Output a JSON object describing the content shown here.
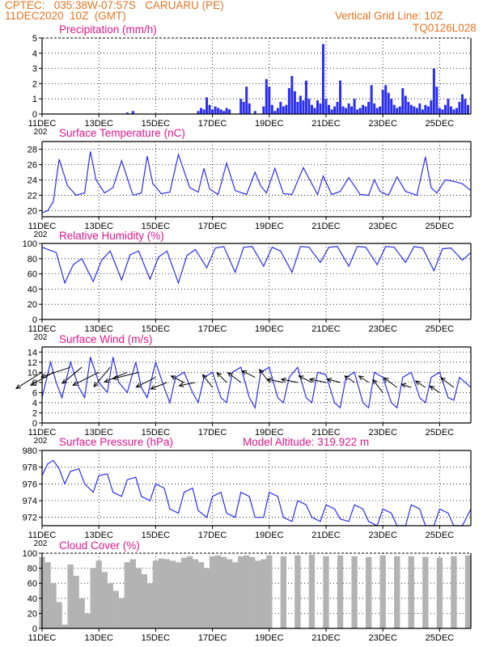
{
  "header": {
    "line1": "CPTEC:   035:38W-07:57S   CARUARU (PE)",
    "line2": "11DEC2020  10Z  (GMT)",
    "grid_note": "Vertical Grid Line: 10Z",
    "model_id": "TQ0126L028"
  },
  "colors": {
    "header": "#e8731f",
    "title": "#e0178a",
    "line": "#2a2ef0",
    "bars": "#2a2ef0",
    "cloud": "#b3b3b3",
    "arrows": "#000000"
  },
  "x_axis": {
    "ticks": [
      "11DEC",
      "13DEC",
      "15DEC",
      "17DEC",
      "19DEC",
      "21DEC",
      "23DEC",
      "25DEC"
    ],
    "tick_days": [
      0,
      2,
      4,
      6,
      8,
      10,
      12,
      14
    ],
    "cut_label": "202",
    "range_days": [
      0,
      15.1
    ]
  },
  "chart_data": [
    {
      "type": "bar",
      "title": "Precipitation (mm/h)",
      "ylim": [
        0,
        5
      ],
      "yticks": [
        0,
        1,
        2,
        3,
        4,
        5
      ],
      "x_unit": "days since 11DEC2020 10Z",
      "x": [
        3.0,
        3.2,
        5.5,
        5.6,
        5.7,
        5.8,
        5.9,
        6.0,
        6.1,
        6.2,
        6.3,
        6.4,
        6.5,
        6.6,
        7.0,
        7.1,
        7.2,
        7.3,
        7.5,
        7.8,
        7.9,
        8.0,
        8.1,
        8.2,
        8.3,
        8.4,
        8.5,
        8.6,
        8.7,
        8.8,
        8.9,
        9.0,
        9.1,
        9.2,
        9.3,
        9.4,
        9.5,
        9.6,
        9.7,
        9.8,
        9.9,
        10.0,
        10.1,
        10.2,
        10.3,
        10.4,
        10.5,
        10.6,
        10.7,
        10.8,
        10.9,
        11.0,
        11.1,
        11.2,
        11.3,
        11.4,
        11.5,
        11.6,
        11.7,
        11.8,
        11.9,
        12.0,
        12.1,
        12.2,
        12.3,
        12.4,
        12.5,
        12.6,
        12.7,
        12.8,
        12.9,
        13.0,
        13.1,
        13.2,
        13.3,
        13.4,
        13.5,
        13.6,
        13.7,
        13.8,
        13.9,
        14.0,
        14.1,
        14.2,
        14.3,
        14.4,
        14.5,
        14.6,
        14.7,
        14.8,
        14.9,
        15.0
      ],
      "values": [
        0.1,
        0.2,
        0.2,
        0.4,
        0.3,
        1.1,
        0.6,
        0.3,
        0.5,
        0.4,
        0.3,
        0.2,
        0.4,
        0.3,
        1.0,
        0.8,
        1.8,
        0.7,
        0.2,
        0.5,
        2.3,
        1.8,
        0.6,
        0.2,
        0.4,
        0.8,
        0.5,
        0.6,
        1.7,
        2.5,
        1.5,
        0.8,
        1.2,
        0.9,
        2.2,
        1.0,
        0.6,
        0.4,
        0.9,
        0.7,
        4.6,
        1.0,
        0.6,
        0.3,
        0.5,
        0.8,
        2.2,
        0.5,
        0.4,
        0.7,
        0.5,
        1.0,
        0.3,
        0.4,
        0.6,
        0.5,
        0.8,
        1.9,
        0.7,
        0.4,
        0.5,
        1.6,
        1.9,
        1.4,
        1.0,
        0.6,
        0.4,
        0.5,
        1.7,
        1.2,
        0.8,
        0.6,
        0.5,
        0.4,
        0.7,
        0.3,
        0.6,
        0.5,
        0.9,
        3.0,
        1.8,
        0.4,
        0.3,
        0.6,
        1.0,
        0.5,
        0.3,
        0.4,
        0.8,
        1.3,
        1.0,
        0.6
      ]
    },
    {
      "type": "line",
      "title": "Surface Temperature (nC)",
      "ylim": [
        19.2,
        29
      ],
      "yticks": [
        20,
        22,
        24,
        26,
        28
      ],
      "x_unit": "days since 11DEC2020 10Z",
      "x": [
        0.0,
        0.2,
        0.4,
        0.5,
        0.6,
        0.9,
        1.2,
        1.5,
        1.7,
        1.9,
        2.2,
        2.5,
        2.8,
        3.2,
        3.5,
        3.7,
        3.9,
        4.2,
        4.5,
        4.8,
        5.2,
        5.5,
        5.7,
        5.9,
        6.2,
        6.5,
        6.8,
        7.2,
        7.5,
        7.7,
        7.9,
        8.2,
        8.5,
        8.8,
        9.2,
        9.5,
        9.7,
        9.9,
        10.2,
        10.5,
        10.8,
        11.2,
        11.5,
        11.7,
        11.9,
        12.2,
        12.5,
        12.8,
        13.2,
        13.5,
        13.7,
        13.9,
        14.2,
        14.5,
        14.8,
        15.1
      ],
      "values": [
        19.7,
        20.0,
        21.2,
        24.0,
        26.7,
        23.2,
        22.0,
        22.3,
        27.7,
        24.0,
        22.3,
        23.0,
        26.5,
        22.0,
        22.3,
        27.1,
        23.5,
        22.2,
        22.4,
        27.3,
        23.0,
        22.4,
        25.5,
        22.8,
        22.1,
        26.2,
        22.6,
        22.1,
        25.0,
        23.2,
        22.3,
        25.5,
        22.2,
        22.1,
        25.6,
        23.5,
        22.1,
        24.5,
        22.1,
        22.5,
        24.3,
        22.1,
        22.0,
        24.0,
        22.5,
        22.0,
        24.4,
        22.5,
        22.0,
        27.0,
        23.0,
        22.3,
        24.0,
        23.8,
        23.5,
        22.6
      ]
    },
    {
      "type": "line",
      "title": "Relative Humidity (%)",
      "ylim": [
        0,
        100
      ],
      "yticks": [
        0,
        20,
        40,
        60,
        80,
        100
      ],
      "x_unit": "days since 11DEC2020 10Z",
      "x": [
        0.0,
        0.5,
        0.8,
        1.1,
        1.4,
        1.8,
        2.1,
        2.4,
        2.8,
        3.1,
        3.4,
        3.8,
        4.1,
        4.4,
        4.8,
        5.1,
        5.4,
        5.8,
        6.1,
        6.4,
        6.8,
        7.1,
        7.4,
        7.8,
        8.1,
        8.4,
        8.8,
        9.1,
        9.4,
        9.8,
        10.1,
        10.4,
        10.8,
        11.1,
        11.4,
        11.8,
        12.1,
        12.4,
        12.8,
        13.1,
        13.4,
        13.8,
        14.1,
        14.4,
        14.8,
        15.1
      ],
      "values": [
        95,
        88,
        48,
        72,
        80,
        50,
        78,
        90,
        52,
        85,
        90,
        53,
        82,
        90,
        48,
        84,
        92,
        68,
        94,
        96,
        62,
        95,
        96,
        70,
        95,
        90,
        62,
        96,
        95,
        75,
        95,
        96,
        70,
        96,
        95,
        72,
        96,
        95,
        75,
        96,
        94,
        64,
        93,
        94,
        78,
        88
      ]
    },
    {
      "type": "line",
      "title": "Surface Wind (m/s)",
      "ylim": [
        0,
        15
      ],
      "yticks": [
        0,
        2,
        4,
        6,
        8,
        10,
        12,
        14
      ],
      "x_unit": "days since 11DEC2020 10Z",
      "x": [
        0.0,
        0.3,
        0.5,
        0.7,
        1.0,
        1.3,
        1.5,
        1.7,
        2.0,
        2.3,
        2.5,
        2.7,
        3.0,
        3.3,
        3.5,
        3.7,
        4.0,
        4.3,
        4.5,
        4.7,
        5.0,
        5.3,
        5.5,
        5.7,
        6.0,
        6.3,
        6.5,
        6.7,
        7.0,
        7.3,
        7.5,
        7.7,
        8.0,
        8.3,
        8.5,
        8.7,
        9.0,
        9.3,
        9.5,
        9.7,
        10.0,
        10.3,
        10.5,
        10.7,
        11.0,
        11.3,
        11.5,
        11.7,
        12.0,
        12.3,
        12.5,
        12.7,
        13.0,
        13.3,
        13.5,
        13.7,
        14.0,
        14.3,
        14.5,
        14.7,
        15.1
      ],
      "values": [
        5.0,
        12.0,
        8.0,
        5.0,
        12.0,
        7.0,
        5.0,
        13.0,
        8.0,
        6.0,
        13.0,
        8.0,
        6.0,
        12.0,
        7.0,
        5.0,
        12.0,
        7.0,
        4.0,
        9.0,
        10.0,
        6.0,
        4.0,
        9.0,
        10.0,
        5.0,
        4.0,
        10.0,
        11.0,
        5.0,
        3.0,
        10.0,
        11.0,
        5.0,
        4.0,
        9.0,
        11.0,
        5.0,
        4.0,
        10.0,
        9.5,
        4.0,
        3.0,
        9.0,
        10.0,
        4.0,
        3.0,
        10.0,
        9.0,
        4.0,
        3.0,
        9.0,
        10.0,
        5.0,
        4.0,
        9.0,
        10.0,
        5.0,
        4.5,
        9.0,
        7.0
      ],
      "wind_arrows": [
        [
          0.0,
          10,
          -0.8,
          -0.5
        ],
        [
          0.4,
          10,
          -0.7,
          -0.4
        ],
        [
          1.0,
          11,
          -0.9,
          -0.3
        ],
        [
          1.4,
          11,
          -0.6,
          -0.5
        ],
        [
          2.0,
          10,
          -0.8,
          -0.4
        ],
        [
          2.4,
          11,
          -0.5,
          -0.6
        ],
        [
          3.0,
          10,
          -0.7,
          -0.3
        ],
        [
          3.4,
          10,
          -0.8,
          -0.2
        ],
        [
          4.0,
          9,
          -0.6,
          -0.3
        ],
        [
          4.4,
          8,
          -0.5,
          -0.2
        ],
        [
          5.0,
          8,
          -0.4,
          0.2
        ],
        [
          5.4,
          8,
          -0.5,
          -0.1
        ],
        [
          6.0,
          7,
          -0.3,
          0.4
        ],
        [
          6.5,
          8,
          -0.3,
          0.3
        ],
        [
          7.0,
          8,
          -0.4,
          0.3
        ],
        [
          7.5,
          9,
          -0.4,
          0.2
        ],
        [
          8.0,
          8,
          -0.3,
          0.4
        ],
        [
          8.5,
          8,
          -0.5,
          0.1
        ],
        [
          9.0,
          8,
          -0.5,
          0.1
        ],
        [
          9.5,
          8,
          -0.4,
          0.2
        ],
        [
          10.0,
          8,
          -0.5,
          0.1
        ],
        [
          10.5,
          8,
          -0.4,
          0.1
        ],
        [
          11.0,
          8,
          -0.3,
          0.2
        ],
        [
          11.5,
          8,
          -0.3,
          0.2
        ],
        [
          12.0,
          6,
          -0.3,
          0.4
        ],
        [
          12.5,
          7,
          -0.4,
          0.3
        ],
        [
          13.0,
          7,
          -0.3,
          0.1
        ],
        [
          13.5,
          7,
          -0.3,
          0.2
        ],
        [
          14.0,
          6,
          -0.3,
          0.2
        ],
        [
          14.5,
          7,
          -0.4,
          0.3
        ]
      ]
    },
    {
      "type": "line",
      "title": "Surface Pressure (hPa)",
      "subtitle": "Model Altitude: 319.922 m",
      "ylim": [
        971,
        980
      ],
      "yticks": [
        972,
        974,
        976,
        978,
        980
      ],
      "x_unit": "days since 11DEC2020 10Z",
      "x": [
        0.0,
        0.2,
        0.4,
        0.6,
        0.8,
        1.0,
        1.3,
        1.5,
        1.8,
        2.0,
        2.3,
        2.5,
        2.8,
        3.0,
        3.3,
        3.5,
        3.8,
        4.0,
        4.3,
        4.5,
        4.8,
        5.0,
        5.3,
        5.5,
        5.8,
        6.0,
        6.3,
        6.5,
        6.8,
        7.0,
        7.3,
        7.5,
        7.8,
        8.0,
        8.3,
        8.5,
        8.8,
        9.0,
        9.3,
        9.5,
        9.8,
        10.0,
        10.3,
        10.5,
        10.8,
        11.0,
        11.3,
        11.5,
        11.8,
        12.0,
        12.3,
        12.5,
        12.8,
        13.0,
        13.3,
        13.5,
        13.8,
        14.0,
        14.3,
        14.5,
        14.8,
        15.1
      ],
      "values": [
        977.0,
        978.4,
        978.8,
        977.8,
        976.0,
        977.5,
        977.8,
        976.0,
        975.0,
        977.0,
        977.2,
        975.0,
        974.5,
        976.5,
        976.8,
        974.5,
        974.0,
        976.0,
        975.5,
        973.0,
        972.5,
        975.0,
        975.5,
        972.8,
        972.0,
        974.5,
        975.0,
        972.5,
        972.0,
        975.0,
        974.5,
        972.0,
        972.0,
        975.0,
        974.5,
        972.0,
        971.5,
        974.0,
        973.5,
        972.0,
        971.5,
        973.5,
        973.0,
        971.8,
        971.5,
        973.5,
        973.0,
        971.5,
        971.0,
        973.0,
        972.5,
        971.0,
        971.0,
        973.5,
        973.0,
        971.0,
        971.0,
        973.0,
        972.5,
        971.0,
        971.0,
        973.0
      ]
    },
    {
      "type": "bar",
      "title": "Cloud Cover (%)",
      "ylim": [
        0,
        100
      ],
      "yticks": [
        0,
        20,
        40,
        60,
        80,
        100
      ],
      "x_unit": "days since 11DEC2020 10Z",
      "x": [
        0.0,
        0.2,
        0.4,
        0.6,
        0.8,
        1.0,
        1.2,
        1.4,
        1.6,
        1.8,
        2.0,
        2.2,
        2.4,
        2.6,
        2.8,
        3.0,
        3.2,
        3.4,
        3.6,
        3.8,
        4.0,
        4.2,
        4.4,
        4.6,
        4.8,
        5.0,
        5.2,
        5.4,
        5.6,
        5.8,
        6.0,
        6.2,
        6.4,
        6.6,
        6.8,
        7.0,
        7.2,
        7.4,
        7.6,
        7.8,
        8.0,
        8.5,
        9.0,
        9.5,
        10.0,
        10.5,
        11.0,
        11.5,
        12.0,
        12.5,
        13.0,
        13.5,
        14.0,
        14.5,
        15.0
      ],
      "values": [
        95,
        88,
        60,
        35,
        5,
        85,
        70,
        40,
        20,
        80,
        90,
        75,
        60,
        50,
        40,
        88,
        92,
        80,
        72,
        60,
        90,
        93,
        92,
        90,
        88,
        94,
        96,
        92,
        88,
        80,
        96,
        97,
        95,
        92,
        88,
        96,
        97,
        95,
        90,
        92,
        97,
        96,
        97,
        98,
        96,
        97,
        96,
        95,
        97,
        96,
        96,
        95,
        94,
        96,
        97
      ]
    }
  ]
}
